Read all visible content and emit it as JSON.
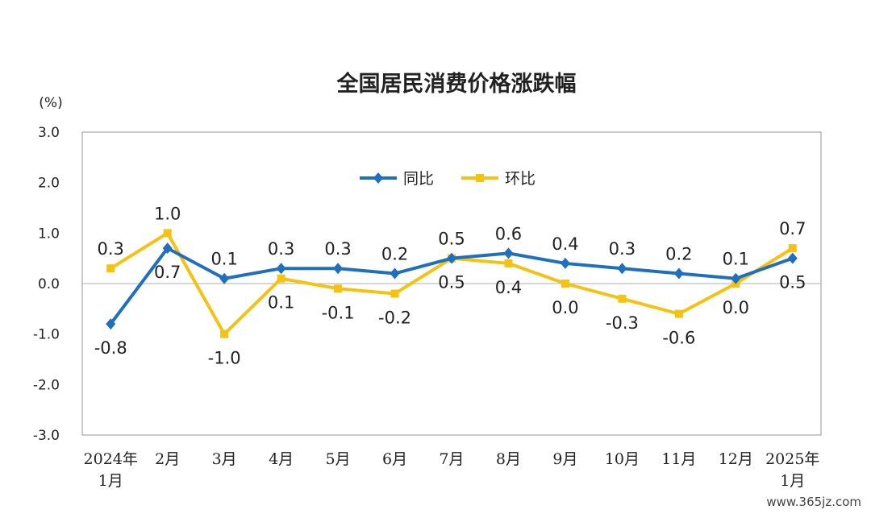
{
  "chart_data": {
    "type": "line",
    "title": "全国居民消费价格涨跌幅",
    "unit": "(%)",
    "ylim": [
      -3.0,
      3.0
    ],
    "yticks": [
      "3.0",
      "2.0",
      "1.0",
      "0.0",
      "-1.0",
      "-2.0",
      "-3.0"
    ],
    "ytick_values": [
      3,
      2,
      1,
      0,
      -1,
      -2,
      -3
    ],
    "categories": [
      [
        "2024年",
        "1月"
      ],
      [
        "2月"
      ],
      [
        "3月"
      ],
      [
        "4月"
      ],
      [
        "5月"
      ],
      [
        "6月"
      ],
      [
        "7月"
      ],
      [
        "8月"
      ],
      [
        "9月"
      ],
      [
        "10月"
      ],
      [
        "11月"
      ],
      [
        "12月"
      ],
      [
        "2025年",
        "1月"
      ]
    ],
    "grid": false,
    "legend_position": "top-center",
    "series": [
      {
        "name": "同比",
        "color": "#1f6fc0",
        "marker": "diamond",
        "values": [
          -0.8,
          0.7,
          0.1,
          0.3,
          0.3,
          0.2,
          0.5,
          0.6,
          0.4,
          0.3,
          0.2,
          0.1,
          0.5
        ],
        "labels": [
          "-0.8",
          "0.7",
          "0.1",
          "0.3",
          "0.3",
          "0.2",
          "0.5",
          "0.6",
          "0.4",
          "0.3",
          "0.2",
          "0.1",
          "0.5"
        ]
      },
      {
        "name": "环比",
        "color": "#f5c211",
        "marker": "square",
        "values": [
          0.3,
          1.0,
          -1.0,
          0.1,
          -0.1,
          -0.2,
          0.5,
          0.4,
          0.0,
          -0.3,
          -0.6,
          0.0,
          0.7
        ],
        "labels": [
          "0.3",
          "1.0",
          "-1.0",
          "0.1",
          "-0.1",
          "-0.2",
          "0.5",
          "0.4",
          "0.0",
          "-0.3",
          "-0.6",
          "0.0",
          "0.7"
        ]
      }
    ]
  },
  "watermark": "www.365jz.com"
}
